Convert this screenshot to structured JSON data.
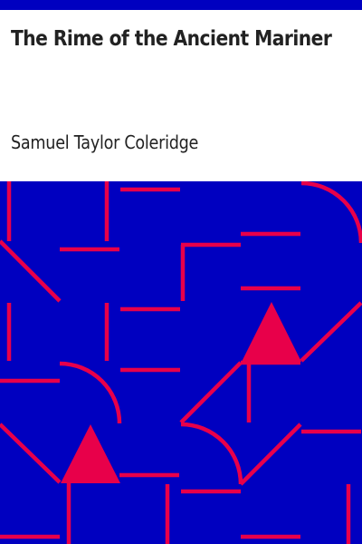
{
  "book": {
    "title": "The Rime of the Ancient Mariner",
    "author": "Samuel Taylor Coleridge"
  },
  "colors": {
    "top_bar": "#0000c0",
    "pattern_background": "#0000c0",
    "pattern_lines": "#e8004a",
    "text": "#222222"
  }
}
